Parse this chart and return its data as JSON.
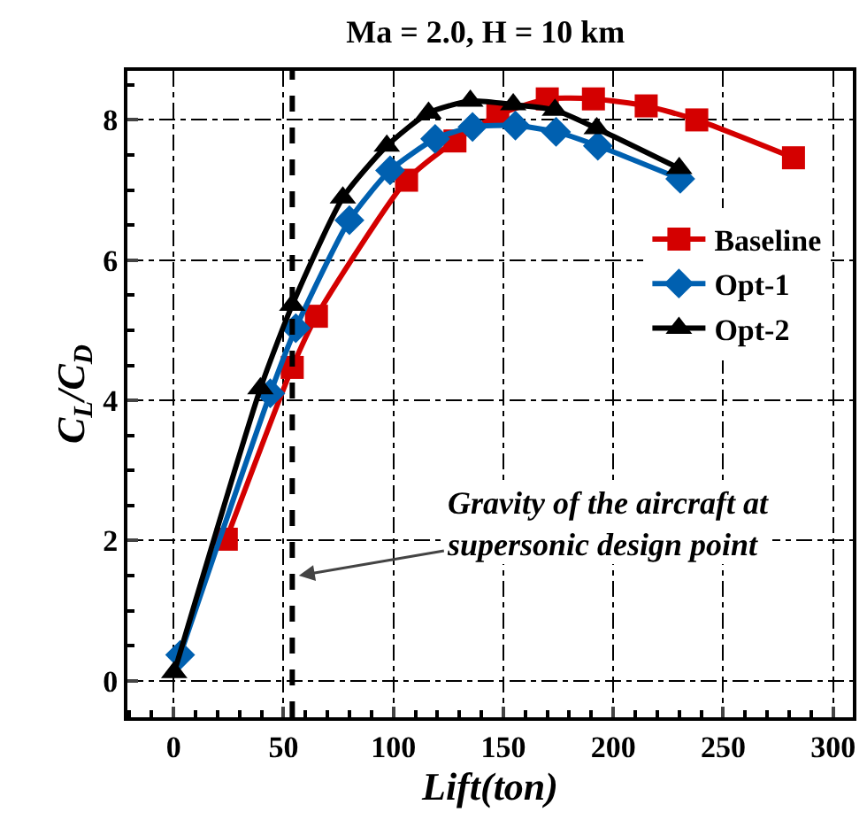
{
  "chart_data": {
    "type": "line",
    "title": "Ma = 2.0, H = 10 km",
    "xlabel": "Lift(ton)",
    "ylabel": "C$_{L}$/C$_{D}$",
    "xlim": [
      -21,
      309
    ],
    "xticks": [
      0,
      50,
      100,
      150,
      200,
      250,
      300
    ],
    "ylim": [
      -0.52,
      8.7
    ],
    "yticks": [
      0,
      2,
      4,
      6,
      8
    ],
    "grid": true,
    "legend": "right",
    "line_style": "solid",
    "series": [
      {
        "name": "Baseline",
        "color": "#d40000",
        "marker": "square",
        "x": [
          24,
          54,
          65,
          106,
          128,
          147.5,
          170,
          191,
          215,
          238,
          282
        ],
        "values": [
          2.02,
          4.47,
          5.2,
          7.14,
          7.7,
          8.07,
          8.3,
          8.3,
          8.2,
          8.0,
          7.46
        ]
      },
      {
        "name": "Opt-1",
        "color": "#0060b0",
        "marker": "diamond",
        "x": [
          3,
          44,
          55.6,
          80,
          98.5,
          119,
          136,
          155.5,
          174,
          193,
          230.5
        ],
        "values": [
          0.37,
          4.1,
          5.03,
          6.57,
          7.28,
          7.73,
          7.9,
          7.92,
          7.83,
          7.63,
          7.16
        ]
      },
      {
        "name": "Opt-2",
        "color": "#000000",
        "marker": "triangle",
        "x": [
          0.3,
          39.5,
          54,
          77,
          97,
          116,
          135,
          154.5,
          173.5,
          192.5,
          230
        ],
        "values": [
          0.12,
          4.17,
          5.36,
          6.89,
          7.63,
          8.1,
          8.27,
          8.22,
          8.14,
          7.88,
          7.31
        ]
      }
    ],
    "ref_lines": [
      {
        "axis": "x",
        "value": 54,
        "label": "Gravity of the aircraft at supersonic design point",
        "line_style": "dashed",
        "color": "#000000"
      }
    ]
  }
}
